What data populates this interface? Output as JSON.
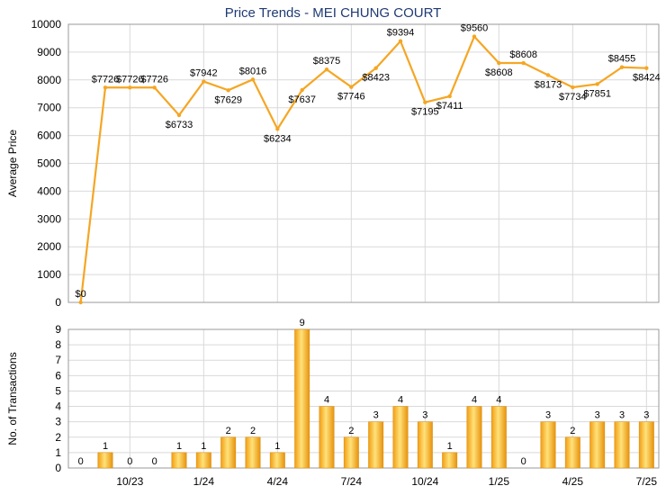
{
  "chart_data": [
    {
      "type": "line",
      "title": "Price Trends - MEI CHUNG COURT",
      "ylabel": "Average Price",
      "ylim": [
        0,
        10000
      ],
      "yticks": [
        0,
        1000,
        2000,
        3000,
        4000,
        5000,
        6000,
        7000,
        8000,
        9000,
        10000
      ],
      "grid": true,
      "color": "#f5a623",
      "values": [
        0,
        7726,
        7726,
        7726,
        6733,
        7942,
        7629,
        8016,
        6234,
        7637,
        8375,
        7746,
        8423,
        9394,
        7195,
        7411,
        9560,
        8608,
        8608,
        8173,
        7734,
        7851,
        8455,
        8424
      ],
      "labels": [
        "$0",
        "$7726",
        "$7726",
        "$7726",
        "$6733",
        "$7942",
        "$7629",
        "$8016",
        "$6234",
        "$7637",
        "$8375",
        "$7746",
        "$8423",
        "$9394",
        "$7195",
        "$7411",
        "$9560",
        "$8608",
        "$8608",
        "$8173",
        "$7734",
        "$7851",
        "$8455",
        "$8424"
      ]
    },
    {
      "type": "bar",
      "ylabel": "No. of Transactions",
      "ylim": [
        0,
        9
      ],
      "yticks": [
        0,
        1,
        2,
        3,
        4,
        5,
        6,
        7,
        8,
        9
      ],
      "grid": true,
      "color": "#f5a623",
      "values": [
        0,
        1,
        0,
        0,
        1,
        1,
        2,
        2,
        1,
        9,
        4,
        2,
        3,
        4,
        3,
        1,
        4,
        4,
        0,
        3,
        2,
        3,
        3,
        3
      ],
      "xticks": [
        {
          "index": 2,
          "label": "10/23"
        },
        {
          "index": 5,
          "label": "1/24"
        },
        {
          "index": 8,
          "label": "4/24"
        },
        {
          "index": 11,
          "label": "7/24"
        },
        {
          "index": 14,
          "label": "10/24"
        },
        {
          "index": 17,
          "label": "1/25"
        },
        {
          "index": 20,
          "label": "4/25"
        },
        {
          "index": 23,
          "label": "7/25"
        }
      ]
    }
  ]
}
